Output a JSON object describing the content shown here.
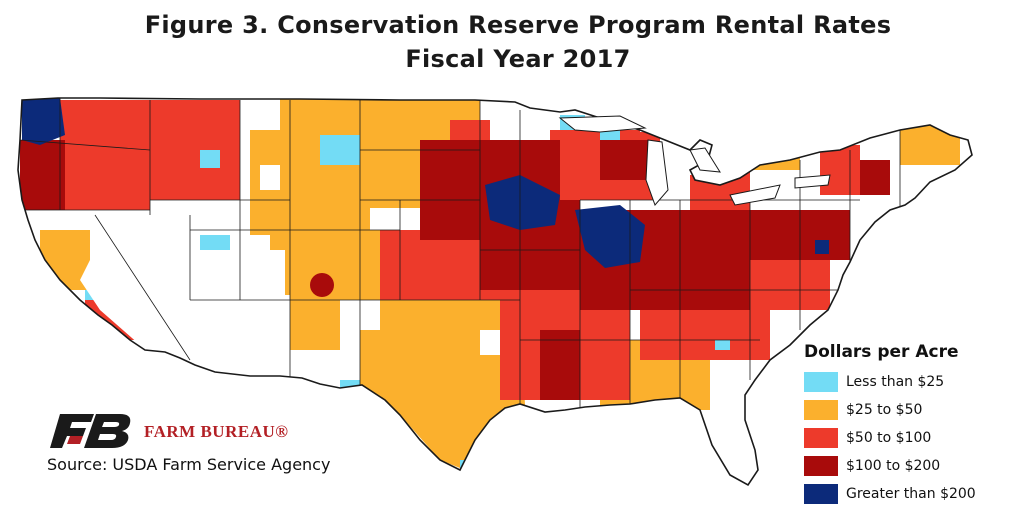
{
  "title": {
    "line1": "Figure 3. Conservation Reserve Program Rental Rates",
    "line2": "Fiscal Year 2017"
  },
  "legend": {
    "title": "Dollars per Acre",
    "items": [
      {
        "label": "Less than $25",
        "color": "#73dcf5"
      },
      {
        "label": "$25 to $50",
        "color": "#fbb02d"
      },
      {
        "label": "$50 to $100",
        "color": "#ed3a2b"
      },
      {
        "label": "$100 to $200",
        "color": "#a80b0b"
      },
      {
        "label": "Greater than $200",
        "color": "#0c2a7a"
      }
    ]
  },
  "logo": {
    "text": "FARM BUREAU®",
    "color": "#b32025"
  },
  "source": "Source: USDA Farm Service Agency",
  "map": {
    "subject": "Contiguous United States county choropleth",
    "no_data_color": "#ffffff",
    "border_color": "#1a1a1a"
  }
}
